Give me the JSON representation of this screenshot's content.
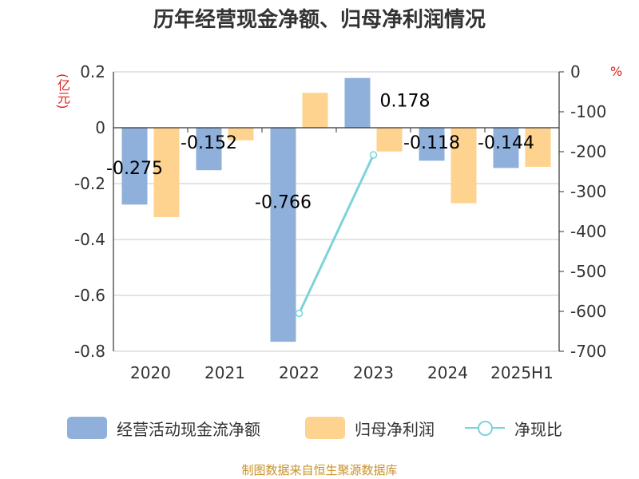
{
  "title": "历年经营现金净额、归母净利润情况",
  "unit_left": "(亿元)",
  "unit_right": "%",
  "source": "制图数据来自恒生聚源数据库",
  "colors": {
    "cash": "#8eb0db",
    "profit": "#fed38f",
    "ratio": "#7dd3db"
  },
  "chart_data": {
    "type": "bar",
    "title": "历年经营现金净额、归母净利润情况",
    "categories": [
      "2020",
      "2021",
      "2022",
      "2023",
      "2024",
      "2025H1"
    ],
    "y_left": {
      "label": "(亿元)",
      "ylim": [
        -0.8,
        0.2
      ],
      "ticks": [
        "0.2",
        "0",
        "-0.2",
        "-0.4",
        "-0.6",
        "-0.8"
      ]
    },
    "y_right": {
      "label": "%",
      "ylim": [
        -700,
        0
      ],
      "ticks": [
        "0",
        "-100",
        "-200",
        "-300",
        "-400",
        "-500",
        "-600",
        "-700"
      ]
    },
    "series": [
      {
        "name": "经营活动现金流净额",
        "type": "bar",
        "axis": "left",
        "values": [
          -0.275,
          -0.152,
          -0.766,
          0.178,
          -0.118,
          -0.144
        ],
        "labels": [
          "-0.275",
          "-0.152",
          "-0.766",
          "0.178",
          "-0.118",
          "-0.144"
        ]
      },
      {
        "name": "归母净利润",
        "type": "bar",
        "axis": "left",
        "values": [
          -0.32,
          -0.045,
          0.125,
          -0.085,
          -0.27,
          -0.14
        ]
      },
      {
        "name": "净现比",
        "type": "line",
        "axis": "right",
        "points": [
          {
            "x": "2022",
            "y": -605
          },
          {
            "x": "2023",
            "y": -208
          }
        ]
      }
    ],
    "grid": true,
    "legend": "bottom"
  }
}
